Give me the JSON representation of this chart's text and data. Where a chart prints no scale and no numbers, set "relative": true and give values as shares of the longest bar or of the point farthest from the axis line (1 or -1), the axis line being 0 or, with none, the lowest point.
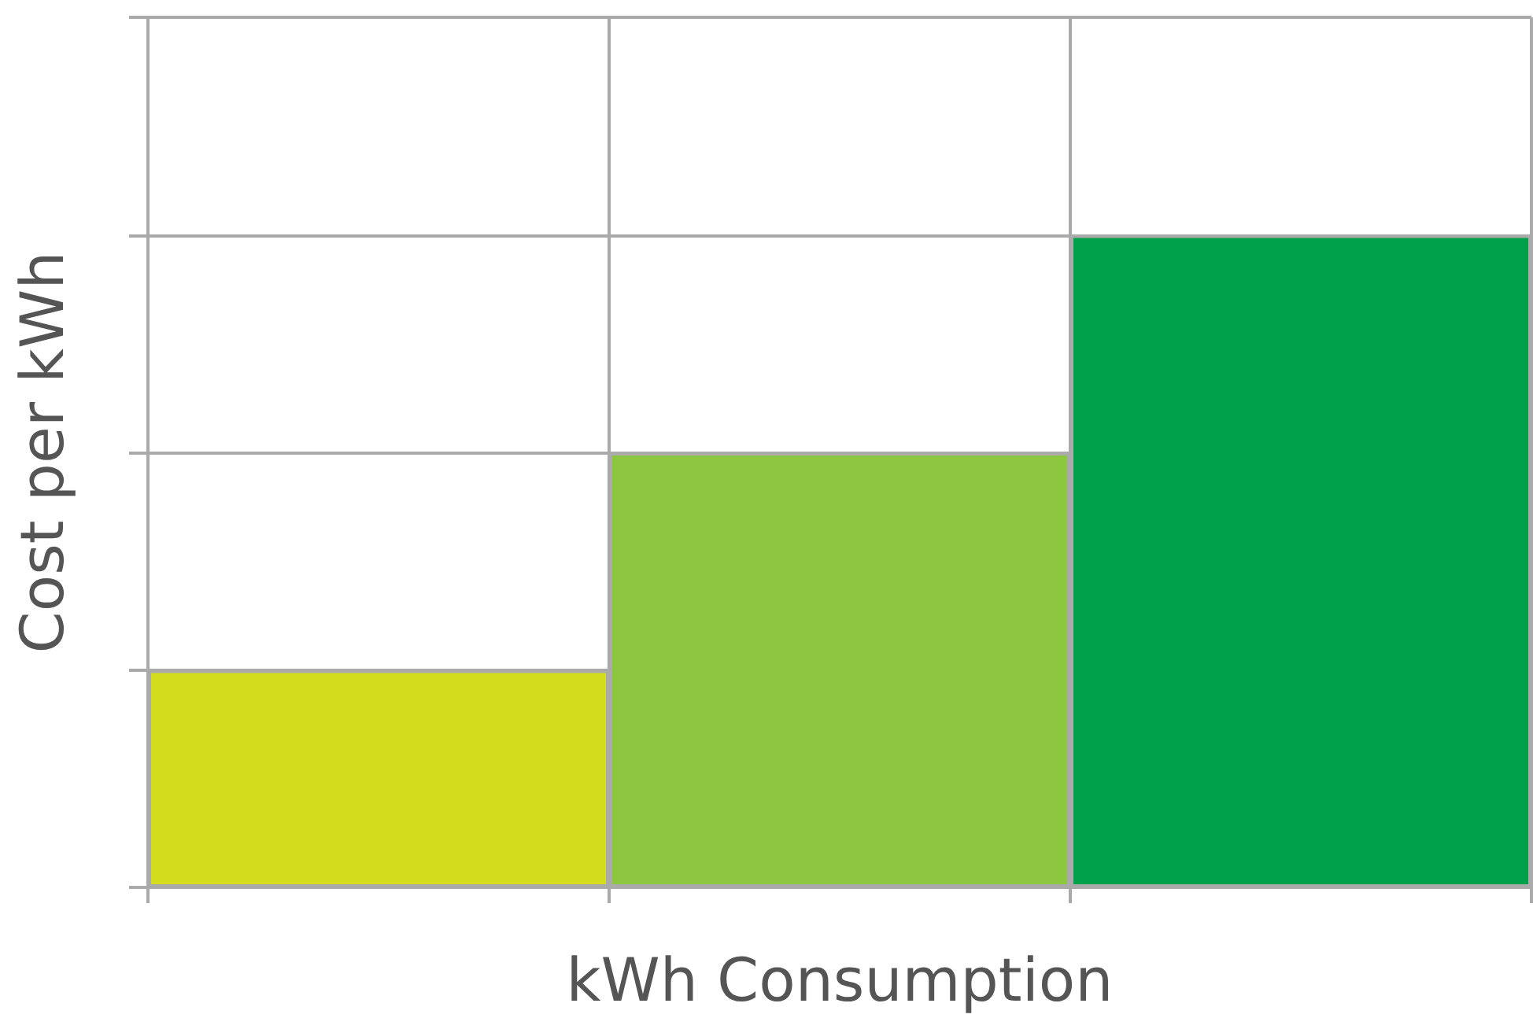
{
  "chart_data": {
    "type": "bar",
    "relative": true,
    "categories": [
      null,
      null,
      null
    ],
    "values": [
      0.3333,
      0.6667,
      1
    ],
    "colors": [
      "#d4dc1e",
      "#8dc63f",
      "#00a14b"
    ],
    "xlabel": "kWh Consumption",
    "ylabel": "Cost per kWh",
    "grid": true
  }
}
